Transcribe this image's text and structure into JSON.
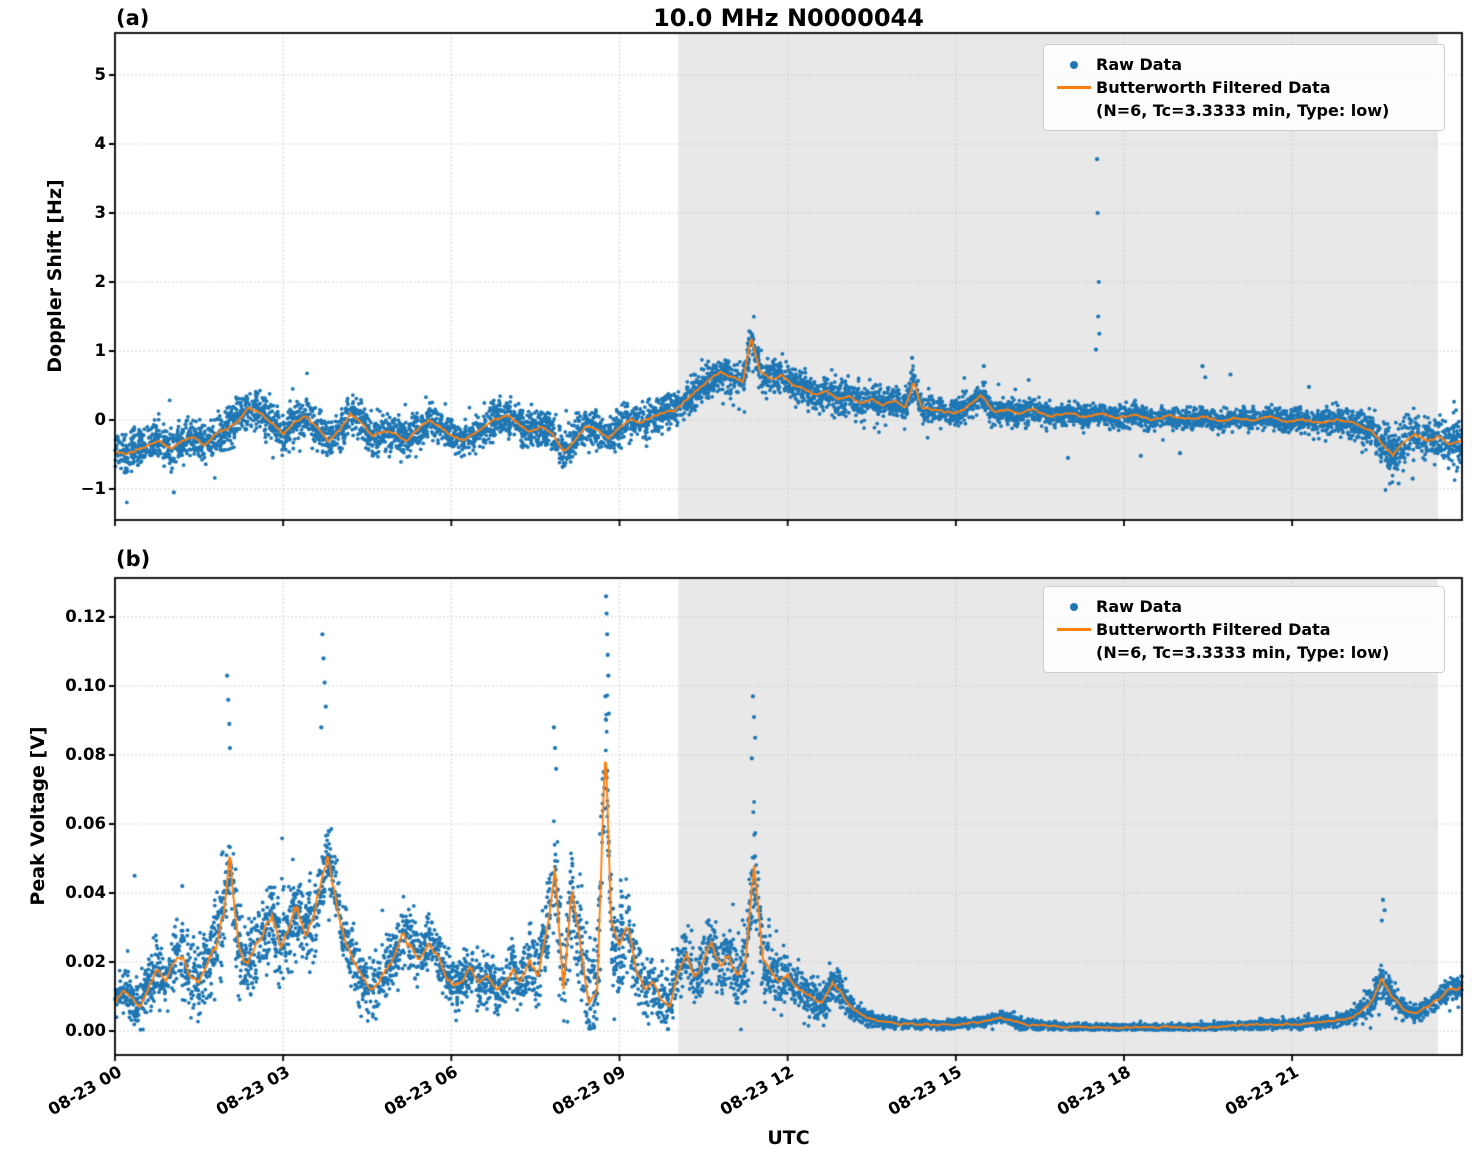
{
  "figure": {
    "title": "10.0 MHz N0000044",
    "xlabel": "UTC",
    "panel_a_label": "(a)",
    "panel_b_label": "(b)",
    "legend": {
      "raw": "Raw Data",
      "filtered_line1": "Butterworth Filtered Data",
      "filtered_line2": "(N=6, Tc=3.3333 min, Type: low)"
    },
    "colors": {
      "raw": "#1f77b4",
      "filtered": "#ff7f0e",
      "shade": "#e8e8e8",
      "grid": "#c8c8c8",
      "spine": "#000000"
    }
  },
  "chart_data": [
    {
      "panel": "a",
      "type": "scatter",
      "title": "10.0 MHz N0000044",
      "ylabel": "Doppler Shift [Hz]",
      "ylim": [
        -1.449,
        5.609
      ],
      "yticks": [
        -1,
        0,
        1,
        2,
        3,
        4,
        5
      ],
      "ytick_labels": [
        "−1",
        "0",
        "1",
        "2",
        "3",
        "4",
        "5"
      ],
      "xlim_hours": [
        0,
        24.03
      ],
      "xticks_hours": [
        0,
        3,
        6,
        9,
        12,
        15,
        18,
        21
      ],
      "xtick_labels": [
        "08-23 00",
        "08-23 03",
        "08-23 06",
        "08-23 09",
        "08-23 12",
        "08-23 15",
        "08-23 18",
        "08-23 21"
      ],
      "x_axis_date": "08-23",
      "grid": true,
      "legend_position": "upper right",
      "shaded_region_hours": [
        10.05,
        23.6
      ],
      "series": [
        {
          "name": "Raw Data",
          "type": "scatter",
          "n_points": 7000,
          "envelope_spread_x": [
            0,
            2,
            4,
            6,
            8,
            9.5,
            10.5,
            11.5,
            12.5,
            14,
            16,
            18,
            20,
            22,
            22.8,
            23.5,
            24.03
          ],
          "envelope_spread": [
            0.27,
            0.27,
            0.26,
            0.25,
            0.27,
            0.24,
            0.22,
            0.25,
            0.24,
            0.21,
            0.17,
            0.15,
            0.13,
            0.2,
            0.3,
            0.27,
            0.3
          ],
          "outliers": [
            [
              1.05,
              -1.05
            ],
            [
              17.52,
              3.78
            ],
            [
              17.53,
              3.0
            ],
            [
              17.55,
              2.0
            ],
            [
              17.54,
              1.5
            ],
            [
              17.56,
              1.25
            ],
            [
              17.5,
              1.02
            ],
            [
              14.22,
              0.9
            ],
            [
              15.5,
              0.78
            ],
            [
              19.4,
              0.78
            ],
            [
              19.45,
              0.62
            ],
            [
              19.9,
              0.66
            ],
            [
              16.3,
              0.58
            ],
            [
              21.3,
              0.48
            ],
            [
              17.0,
              -0.55
            ],
            [
              18.3,
              -0.52
            ],
            [
              19.0,
              -0.48
            ],
            [
              22.9,
              -0.92
            ],
            [
              23.15,
              -0.85
            ]
          ]
        },
        {
          "name": "Butterworth Filtered Data (N=6, Tc=3.3333 min, Type: low)",
          "type": "line",
          "x": [
            0,
            0.2,
            0.4,
            0.6,
            0.8,
            1,
            1.2,
            1.4,
            1.6,
            1.8,
            2,
            2.2,
            2.4,
            2.6,
            2.8,
            3,
            3.2,
            3.4,
            3.6,
            3.8,
            4,
            4.2,
            4.4,
            4.6,
            4.8,
            5,
            5.2,
            5.4,
            5.6,
            5.8,
            6,
            6.2,
            6.4,
            6.6,
            6.8,
            7,
            7.2,
            7.4,
            7.6,
            7.8,
            8,
            8.2,
            8.4,
            8.6,
            8.8,
            9,
            9.2,
            9.4,
            9.6,
            9.8,
            10,
            10.2,
            10.4,
            10.6,
            10.8,
            11,
            11.2,
            11.35,
            11.5,
            11.7,
            11.9,
            12.1,
            12.3,
            12.5,
            12.7,
            12.9,
            13.1,
            13.3,
            13.5,
            13.7,
            13.9,
            14.1,
            14.25,
            14.4,
            14.6,
            14.8,
            15,
            15.2,
            15.45,
            15.7,
            15.9,
            16.1,
            16.4,
            16.7,
            17,
            17.3,
            17.6,
            17.9,
            18.2,
            18.5,
            18.8,
            19.1,
            19.4,
            19.7,
            20,
            20.3,
            20.6,
            20.9,
            21.2,
            21.5,
            21.8,
            22.1,
            22.4,
            22.6,
            22.8,
            23,
            23.2,
            23.4,
            23.6,
            23.8,
            24.03
          ],
          "y": [
            -0.45,
            -0.5,
            -0.42,
            -0.35,
            -0.3,
            -0.42,
            -0.3,
            -0.25,
            -0.35,
            -0.2,
            -0.12,
            0,
            0.18,
            0.1,
            -0.05,
            -0.2,
            -0.05,
            0.05,
            -0.1,
            -0.3,
            -0.15,
            0.1,
            -0.05,
            -0.25,
            -0.15,
            -0.2,
            -0.3,
            -0.15,
            0,
            -0.1,
            -0.22,
            -0.3,
            -0.2,
            -0.1,
            0,
            0.05,
            -0.05,
            -0.15,
            -0.1,
            -0.2,
            -0.45,
            -0.3,
            -0.1,
            -0.15,
            -0.25,
            -0.1,
            0,
            -0.05,
            0.05,
            0.1,
            0.15,
            0.3,
            0.45,
            0.6,
            0.7,
            0.62,
            0.55,
            1.2,
            0.7,
            0.6,
            0.65,
            0.5,
            0.45,
            0.35,
            0.42,
            0.3,
            0.35,
            0.25,
            0.3,
            0.22,
            0.28,
            0.2,
            0.55,
            0.18,
            0.15,
            0.12,
            0.1,
            0.18,
            0.35,
            0.1,
            0.15,
            0.08,
            0.15,
            0.05,
            0.1,
            0.05,
            0.1,
            0.03,
            0.08,
            0,
            0.05,
            0,
            0.05,
            -0.02,
            0.03,
            0,
            0.05,
            -0.02,
            0,
            -0.05,
            0,
            -0.05,
            -0.15,
            -0.35,
            -0.5,
            -0.3,
            -0.2,
            -0.3,
            -0.25,
            -0.35,
            -0.3
          ]
        }
      ]
    },
    {
      "panel": "b",
      "type": "scatter",
      "ylabel": "Peak Voltage [V]",
      "ylim": [
        -0.00695,
        0.13131
      ],
      "yticks": [
        0,
        0.02,
        0.04,
        0.06,
        0.08,
        0.1,
        0.12
      ],
      "ytick_labels": [
        "0.00",
        "0.02",
        "0.04",
        "0.06",
        "0.08",
        "0.10",
        "0.12"
      ],
      "xlim_hours": [
        0,
        24.03
      ],
      "xticks_hours": [
        0,
        3,
        6,
        9,
        12,
        15,
        18,
        21
      ],
      "xtick_labels": [
        "08-23 00",
        "08-23 03",
        "08-23 06",
        "08-23 09",
        "08-23 12",
        "08-23 15",
        "08-23 18",
        "08-23 21"
      ],
      "grid": true,
      "legend_position": "upper right",
      "shaded_region_hours": [
        10.05,
        23.6
      ],
      "series": [
        {
          "name": "Raw Data",
          "type": "scatter",
          "n_points": 6500,
          "envelope_spread_x": [
            0,
            1,
            2,
            3,
            4,
            5,
            6,
            7,
            7.9,
            8.8,
            9.5,
            10,
            11,
            11.4,
            12,
            12.6,
            13,
            13.5,
            14,
            15,
            16,
            17,
            18,
            19,
            20,
            21,
            22,
            22.6,
            23,
            23.5,
            24.03
          ],
          "envelope_spread": [
            0.006,
            0.009,
            0.012,
            0.012,
            0.009,
            0.008,
            0.007,
            0.007,
            0.013,
            0.018,
            0.009,
            0.008,
            0.008,
            0.014,
            0.006,
            0.005,
            0.004,
            0.002,
            0.0013,
            0.0013,
            0.0018,
            0.001,
            0.0009,
            0.001,
            0.0011,
            0.0013,
            0.0018,
            0.005,
            0.0025,
            0.0025,
            0.0035
          ],
          "outliers": [
            [
              2.0,
              0.103
            ],
            [
              2.02,
              0.096
            ],
            [
              2.04,
              0.089
            ],
            [
              2.05,
              0.082
            ],
            [
              3.7,
              0.115
            ],
            [
              3.72,
              0.108
            ],
            [
              3.74,
              0.101
            ],
            [
              3.76,
              0.094
            ],
            [
              3.68,
              0.088
            ],
            [
              7.83,
              0.088
            ],
            [
              7.85,
              0.082
            ],
            [
              7.87,
              0.076
            ],
            [
              8.76,
              0.126
            ],
            [
              8.77,
              0.121
            ],
            [
              8.78,
              0.115
            ],
            [
              8.79,
              0.109
            ],
            [
              8.8,
              0.103
            ],
            [
              8.75,
              0.097
            ],
            [
              8.81,
              0.092
            ],
            [
              11.38,
              0.097
            ],
            [
              11.4,
              0.091
            ],
            [
              11.42,
              0.085
            ],
            [
              11.36,
              0.079
            ],
            [
              22.62,
              0.038
            ],
            [
              22.65,
              0.035
            ],
            [
              22.6,
              0.032
            ],
            [
              0.35,
              0.045
            ],
            [
              1.2,
              0.042
            ]
          ]
        },
        {
          "name": "Butterworth Filtered Data (N=6, Tc=3.3333 min, Type: low)",
          "type": "line",
          "x": [
            0,
            0.15,
            0.3,
            0.45,
            0.6,
            0.75,
            0.9,
            1.05,
            1.2,
            1.35,
            1.5,
            1.65,
            1.8,
            1.95,
            2.05,
            2.2,
            2.35,
            2.5,
            2.65,
            2.8,
            2.95,
            3.1,
            3.25,
            3.4,
            3.55,
            3.7,
            3.8,
            3.95,
            4.1,
            4.25,
            4.4,
            4.55,
            4.7,
            4.85,
            5,
            5.15,
            5.3,
            5.45,
            5.6,
            5.75,
            5.9,
            6.05,
            6.2,
            6.35,
            6.5,
            6.65,
            6.8,
            6.95,
            7.1,
            7.25,
            7.4,
            7.55,
            7.7,
            7.85,
            8,
            8.15,
            8.3,
            8.45,
            8.6,
            8.75,
            8.85,
            9,
            9.15,
            9.3,
            9.45,
            9.6,
            9.75,
            9.9,
            10.05,
            10.2,
            10.35,
            10.5,
            10.65,
            10.8,
            10.95,
            11.1,
            11.25,
            11.4,
            11.55,
            11.7,
            11.85,
            12,
            12.2,
            12.4,
            12.6,
            12.8,
            13,
            13.2,
            13.4,
            13.6,
            13.8,
            14,
            14.3,
            14.6,
            15,
            15.4,
            15.8,
            16.2,
            16.6,
            17,
            17.5,
            18,
            18.5,
            19,
            19.5,
            20,
            20.5,
            21,
            21.4,
            21.8,
            22.1,
            22.4,
            22.6,
            22.8,
            23,
            23.2,
            23.4,
            23.6,
            23.8,
            24.03
          ],
          "y": [
            0.008,
            0.012,
            0.01,
            0.007,
            0.013,
            0.018,
            0.014,
            0.02,
            0.022,
            0.016,
            0.014,
            0.02,
            0.024,
            0.035,
            0.05,
            0.025,
            0.02,
            0.024,
            0.028,
            0.033,
            0.025,
            0.03,
            0.035,
            0.028,
            0.032,
            0.045,
            0.052,
            0.038,
            0.028,
            0.02,
            0.016,
            0.012,
            0.014,
            0.018,
            0.022,
            0.028,
            0.024,
            0.02,
            0.026,
            0.022,
            0.016,
            0.013,
            0.015,
            0.018,
            0.014,
            0.016,
            0.012,
            0.014,
            0.018,
            0.015,
            0.02,
            0.016,
            0.03,
            0.046,
            0.012,
            0.04,
            0.025,
            0.008,
            0.012,
            0.085,
            0.03,
            0.025,
            0.03,
            0.018,
            0.012,
            0.015,
            0.009,
            0.007,
            0.018,
            0.022,
            0.015,
            0.02,
            0.025,
            0.018,
            0.022,
            0.016,
            0.02,
            0.05,
            0.022,
            0.018,
            0.014,
            0.016,
            0.012,
            0.01,
            0.008,
            0.014,
            0.01,
            0.006,
            0.004,
            0.003,
            0.0025,
            0.002,
            0.002,
            0.0018,
            0.002,
            0.0025,
            0.004,
            0.002,
            0.0015,
            0.0012,
            0.001,
            0.001,
            0.001,
            0.0012,
            0.001,
            0.0015,
            0.002,
            0.002,
            0.0025,
            0.003,
            0.004,
            0.008,
            0.015,
            0.01,
            0.006,
            0.005,
            0.007,
            0.009,
            0.012,
            0.013
          ]
        }
      ]
    }
  ]
}
